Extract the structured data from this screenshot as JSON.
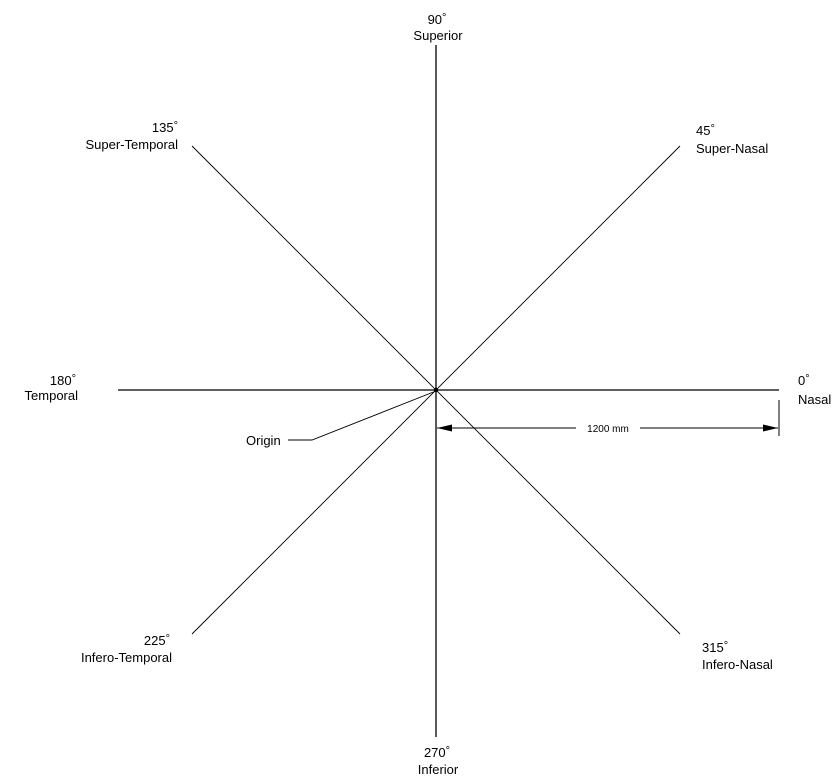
{
  "directions": [
    {
      "key": "nasal",
      "angle": "0",
      "name": "Nasal"
    },
    {
      "key": "super_nasal",
      "angle": "45",
      "name": "Super-Nasal"
    },
    {
      "key": "superior",
      "angle": "90",
      "name": "Superior"
    },
    {
      "key": "super_temporal",
      "angle": "135",
      "name": "Super-Temporal"
    },
    {
      "key": "temporal",
      "angle": "180",
      "name": "Temporal"
    },
    {
      "key": "infero_temporal",
      "angle": "225",
      "name": "Infero-Temporal"
    },
    {
      "key": "inferior",
      "angle": "270",
      "name": "Inferior"
    },
    {
      "key": "infero_nasal",
      "angle": "315",
      "name": "Infero-Nasal"
    }
  ],
  "degree_symbol": "°",
  "origin_label": "Origin",
  "dimension_label": "1200 mm"
}
